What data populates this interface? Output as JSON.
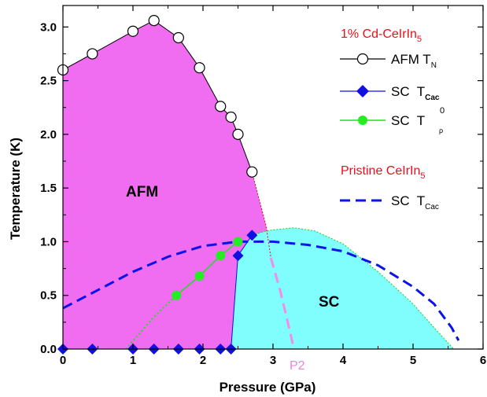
{
  "chart_data": {
    "type": "scatter",
    "xlabel": "Pressure (GPa)",
    "ylabel": "Temperature (K)",
    "xlim": [
      0,
      6
    ],
    "ylim": [
      0,
      3.2
    ],
    "xticks": [
      "0",
      "1",
      "2",
      "3",
      "4",
      "5",
      "6"
    ],
    "yticks": [
      "0.0",
      "0.5",
      "1.0",
      "1.5",
      "2.0",
      "2.5",
      "3.0"
    ],
    "legend_group_1_title": "1% Cd-CeIrIn",
    "legend_group_1_title_sub": "5",
    "legend_group_2_title": "Pristine CeIrIn",
    "legend_group_2_title_sub": "5",
    "region_labels": {
      "afm": "AFM",
      "sc": "SC"
    },
    "annotations": {
      "p2": "P2"
    },
    "series": [
      {
        "name": "AFM T",
        "name_sub": "N",
        "style": "line-open-circle",
        "color": "#000000",
        "x": [
          0.0,
          0.42,
          1.0,
          1.3,
          1.65,
          1.95,
          2.25,
          2.4,
          2.5,
          2.7
        ],
        "y": [
          2.6,
          2.75,
          2.96,
          3.06,
          2.9,
          2.62,
          2.26,
          2.16,
          2.0,
          1.65
        ]
      },
      {
        "name": "SC  T",
        "name_sub": "Cac",
        "style": "line-diamond",
        "color": "#1010e0",
        "x": [
          0.0,
          0.42,
          1.0,
          1.3,
          1.65,
          1.95,
          2.25,
          2.4,
          2.5,
          2.7
        ],
        "y": [
          0.0,
          0.0,
          0.0,
          0.0,
          0.0,
          0.0,
          0.0,
          0.0,
          0.87,
          1.06
        ]
      },
      {
        "name": "SC  T",
        "name_sub": "ρ",
        "name_sup": "0",
        "style": "line-filled-circle",
        "color": "#22dd22",
        "x": [
          1.62,
          1.95,
          2.25,
          2.5
        ],
        "y": [
          0.5,
          0.68,
          0.87,
          1.0
        ]
      },
      {
        "name": "SC  T",
        "name_sub": "Cac",
        "style": "dashed",
        "color": "#0a14e8",
        "x": [
          0.0,
          0.5,
          1.0,
          1.5,
          2.0,
          2.5,
          3.0,
          3.5,
          4.0,
          4.5,
          5.0,
          5.3,
          5.55,
          5.65
        ],
        "y": [
          0.38,
          0.55,
          0.72,
          0.86,
          0.96,
          1.0,
          1.0,
          0.97,
          0.91,
          0.78,
          0.58,
          0.42,
          0.2,
          0.08
        ]
      }
    ],
    "phase_boundaries": {
      "afm_dome": {
        "x": [
          0.0,
          0.42,
          1.0,
          1.3,
          1.65,
          1.95,
          2.25,
          2.4,
          2.5,
          2.7,
          2.9,
          2.97
        ],
        "y": [
          2.6,
          2.75,
          2.96,
          3.06,
          2.9,
          2.62,
          2.26,
          2.16,
          2.0,
          1.65,
          1.15,
          0.85
        ]
      },
      "sc_dome": {
        "x": [
          2.4,
          2.5,
          2.7,
          2.9,
          3.0,
          3.3,
          3.6,
          4.0,
          4.5,
          5.0,
          5.3,
          5.58
        ],
        "y": [
          0.0,
          0.87,
          1.06,
          1.1,
          1.11,
          1.13,
          1.1,
          0.98,
          0.72,
          0.42,
          0.2,
          0.0
        ]
      },
      "afm_extrapolation": {
        "x": [
          2.97,
          3.1,
          3.2,
          3.3
        ],
        "y": [
          0.85,
          0.55,
          0.28,
          0.0
        ]
      },
      "sc_low_extrapolation": {
        "x": [
          0.9,
          1.3,
          1.62
        ],
        "y": [
          0.0,
          0.3,
          0.5
        ]
      }
    },
    "colors": {
      "afm_fill": "#f06cf0",
      "sc_fill": "#80fdfd",
      "p2_dash": "#f58ce8"
    },
    "grid": false,
    "legend_position": "top-right"
  }
}
